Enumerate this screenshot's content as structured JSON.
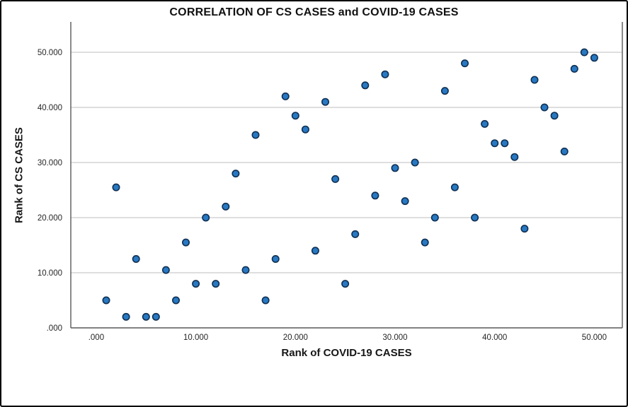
{
  "chart_data": {
    "type": "scatter",
    "title": "CORRELATION OF CS CASES and COVID-19 CASES",
    "xlabel": "Rank of COVID-19 CASES",
    "ylabel": "Rank of CS CASES",
    "x_ticks": [
      {
        "value": 0,
        "label": ".000"
      },
      {
        "value": 10,
        "label": "10.000"
      },
      {
        "value": 20,
        "label": "20.000"
      },
      {
        "value": 30,
        "label": "30.000"
      },
      {
        "value": 40,
        "label": "40.000"
      },
      {
        "value": 50,
        "label": "50.000"
      }
    ],
    "y_ticks": [
      {
        "value": 0,
        "label": ".000"
      },
      {
        "value": 10,
        "label": "10.000"
      },
      {
        "value": 20,
        "label": "20.000"
      },
      {
        "value": 30,
        "label": "30.000"
      },
      {
        "value": 40,
        "label": "40.000"
      },
      {
        "value": 50,
        "label": "50.000"
      }
    ],
    "xlim": [
      -2.5,
      52.8
    ],
    "ylim": [
      0,
      54
    ],
    "grid": "horizontal-only",
    "gridline_color": "#c9c9c9",
    "frame_color": "#595959",
    "marker": {
      "shape": "circle",
      "fill": "#2878C2",
      "stroke": "#0E2F52"
    },
    "points": [
      [
        1,
        5
      ],
      [
        2,
        25.5
      ],
      [
        3,
        2
      ],
      [
        4,
        12.5
      ],
      [
        5,
        2
      ],
      [
        6,
        2
      ],
      [
        7,
        10.5
      ],
      [
        8,
        5
      ],
      [
        9,
        15.5
      ],
      [
        10,
        8
      ],
      [
        11,
        20
      ],
      [
        12,
        8
      ],
      [
        13,
        22
      ],
      [
        14,
        28
      ],
      [
        15,
        10.5
      ],
      [
        16,
        35
      ],
      [
        17,
        5
      ],
      [
        18,
        12.5
      ],
      [
        19,
        42
      ],
      [
        20,
        38.5
      ],
      [
        21,
        36
      ],
      [
        22,
        14
      ],
      [
        23,
        41
      ],
      [
        24,
        27
      ],
      [
        25,
        8
      ],
      [
        26,
        17
      ],
      [
        27,
        44
      ],
      [
        28,
        24
      ],
      [
        29,
        46
      ],
      [
        30,
        29
      ],
      [
        31,
        23
      ],
      [
        32,
        30
      ],
      [
        33,
        15.5
      ],
      [
        34,
        20
      ],
      [
        35,
        43
      ],
      [
        36,
        25.5
      ],
      [
        37,
        48
      ],
      [
        38,
        20
      ],
      [
        39,
        37
      ],
      [
        40,
        33.5
      ],
      [
        41,
        33.5
      ],
      [
        42,
        31
      ],
      [
        43,
        18
      ],
      [
        44,
        45
      ],
      [
        45,
        40
      ],
      [
        46,
        38.5
      ],
      [
        47,
        32
      ],
      [
        48,
        47
      ],
      [
        49,
        50
      ],
      [
        50,
        49
      ]
    ]
  }
}
